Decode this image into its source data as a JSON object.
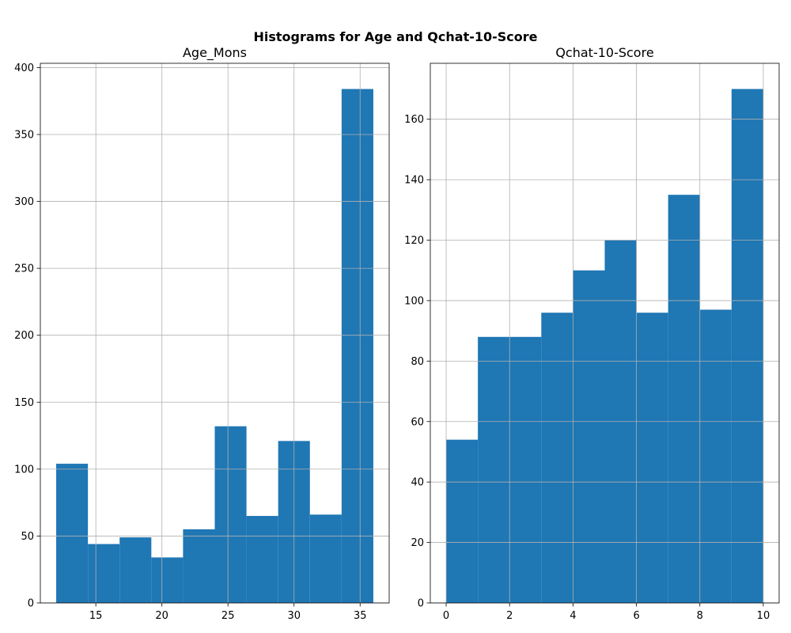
{
  "figure_title": "Histograms for Age and Qchat-10-Score",
  "colors": {
    "bar": "#1f77b4",
    "grid": "#b0b0b0",
    "axis": "#000000"
  },
  "chart_data": [
    {
      "type": "bar",
      "title": "Age_Mons",
      "xlabel": "",
      "ylabel": "",
      "xlim": [
        10.8,
        37.2
      ],
      "ylim": [
        0,
        403.2
      ],
      "xticks": [
        15,
        20,
        25,
        30,
        35
      ],
      "yticks": [
        0,
        50,
        100,
        150,
        200,
        250,
        300,
        350,
        400
      ],
      "grid": true,
      "bins": [
        {
          "start": 12.0,
          "end": 14.4,
          "count": 104
        },
        {
          "start": 14.4,
          "end": 16.8,
          "count": 44
        },
        {
          "start": 16.8,
          "end": 19.2,
          "count": 49
        },
        {
          "start": 19.2,
          "end": 21.6,
          "count": 34
        },
        {
          "start": 21.6,
          "end": 24.0,
          "count": 55
        },
        {
          "start": 24.0,
          "end": 26.4,
          "count": 132
        },
        {
          "start": 26.4,
          "end": 28.8,
          "count": 65
        },
        {
          "start": 28.8,
          "end": 31.2,
          "count": 121
        },
        {
          "start": 31.2,
          "end": 33.6,
          "count": 66
        },
        {
          "start": 33.6,
          "end": 36.0,
          "count": 384
        }
      ]
    },
    {
      "type": "bar",
      "title": "Qchat-10-Score",
      "xlabel": "",
      "ylabel": "",
      "xlim": [
        -0.5,
        10.5
      ],
      "ylim": [
        0,
        178.5
      ],
      "xticks": [
        0,
        2,
        4,
        6,
        8,
        10
      ],
      "yticks": [
        0,
        20,
        40,
        60,
        80,
        100,
        120,
        140,
        160
      ],
      "grid": true,
      "bins": [
        {
          "start": 0,
          "end": 1,
          "count": 54
        },
        {
          "start": 1,
          "end": 2,
          "count": 88
        },
        {
          "start": 2,
          "end": 3,
          "count": 88
        },
        {
          "start": 3,
          "end": 4,
          "count": 96
        },
        {
          "start": 4,
          "end": 5,
          "count": 110
        },
        {
          "start": 5,
          "end": 6,
          "count": 120
        },
        {
          "start": 6,
          "end": 7,
          "count": 96
        },
        {
          "start": 7,
          "end": 8,
          "count": 135
        },
        {
          "start": 8,
          "end": 9,
          "count": 97
        },
        {
          "start": 9,
          "end": 10,
          "count": 170
        }
      ]
    }
  ]
}
